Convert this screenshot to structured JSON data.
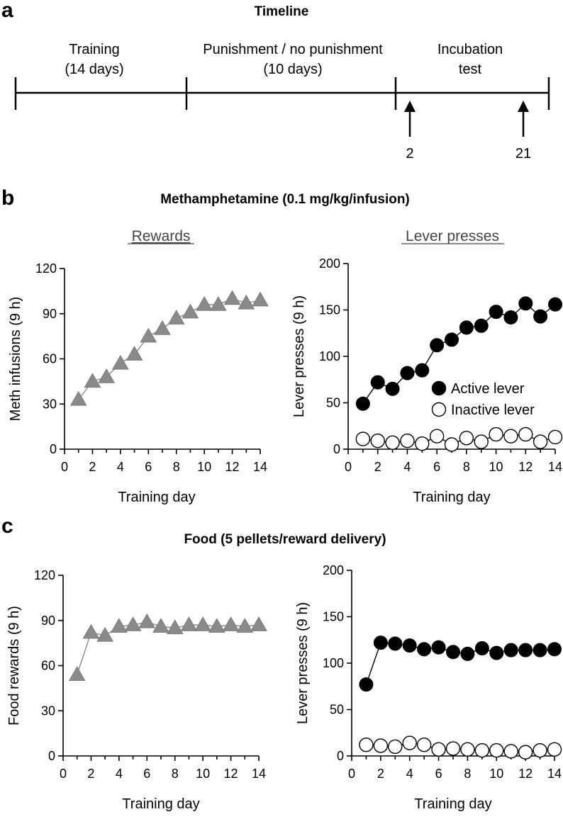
{
  "panels": {
    "a": "a",
    "b": "b",
    "c": "c"
  },
  "timeline": {
    "title": "Timeline",
    "phases": [
      {
        "line1": "Training",
        "line2": "(14 days)"
      },
      {
        "line1": "Punishment / no punishment",
        "line2": "(10 days)"
      },
      {
        "line1": "Incubation",
        "line2": "test"
      }
    ],
    "markers": [
      "2",
      "21"
    ]
  },
  "section_titles": {
    "meth": "Methamphetamine (0.1 mg/kg/infusion)",
    "food": "Food (5 pellets/reward delivery)"
  },
  "subtitles": {
    "rewards": "Rewards",
    "presses": "Lever presses"
  },
  "colors": {
    "triangle": "#8a8a8a",
    "active": "#000000",
    "inactive": "#ffffff"
  },
  "chart_data": [
    {
      "type": "line",
      "id": "meth_rewards",
      "xlabel": "Training day",
      "ylabel": "Meth infusions (9 h)",
      "xlim": [
        0,
        14
      ],
      "ylim": [
        0,
        120
      ],
      "xticks": [
        0,
        2,
        4,
        6,
        8,
        10,
        12,
        14
      ],
      "yticks": [
        0,
        30,
        60,
        90,
        120
      ],
      "series": [
        {
          "marker": "triangle",
          "x": [
            1,
            2,
            3,
            4,
            5,
            6,
            7,
            8,
            9,
            10,
            11,
            12,
            13,
            14
          ],
          "values": [
            33,
            45,
            48,
            57,
            63,
            75,
            80,
            87,
            91,
            96,
            96,
            100,
            97,
            99
          ]
        }
      ]
    },
    {
      "type": "line",
      "id": "meth_presses",
      "xlabel": "Training day",
      "ylabel": "Lever presses (9 h)",
      "xlim": [
        0,
        14
      ],
      "ylim": [
        0,
        200
      ],
      "xticks": [
        0,
        2,
        4,
        6,
        8,
        10,
        12,
        14
      ],
      "yticks": [
        0,
        50,
        100,
        150,
        200
      ],
      "legend": [
        "Active lever",
        "Inactive lever"
      ],
      "series": [
        {
          "name": "Active lever",
          "marker": "filled-circle",
          "x": [
            1,
            2,
            3,
            4,
            5,
            6,
            7,
            8,
            9,
            10,
            11,
            12,
            13,
            14
          ],
          "values": [
            49,
            72,
            65,
            82,
            85,
            112,
            118,
            131,
            133,
            148,
            142,
            157,
            143,
            156
          ]
        },
        {
          "name": "Inactive lever",
          "marker": "open-circle",
          "x": [
            1,
            2,
            3,
            4,
            5,
            6,
            7,
            8,
            9,
            10,
            11,
            12,
            13,
            14
          ],
          "values": [
            11,
            9,
            7,
            9,
            6,
            14,
            5,
            12,
            8,
            16,
            14,
            16,
            8,
            13
          ]
        }
      ]
    },
    {
      "type": "line",
      "id": "food_rewards",
      "xlabel": "Training day",
      "ylabel": "Food rewards (9 h)",
      "xlim": [
        0,
        14
      ],
      "ylim": [
        0,
        120
      ],
      "xticks": [
        0,
        2,
        4,
        6,
        8,
        10,
        12,
        14
      ],
      "yticks": [
        0,
        30,
        60,
        90,
        120
      ],
      "series": [
        {
          "marker": "triangle",
          "x": [
            1,
            2,
            3,
            4,
            5,
            6,
            7,
            8,
            9,
            10,
            11,
            12,
            13,
            14
          ],
          "values": [
            54,
            82,
            80,
            86,
            87,
            89,
            86,
            85,
            87,
            87,
            86,
            87,
            86,
            87
          ]
        }
      ]
    },
    {
      "type": "line",
      "id": "food_presses",
      "xlabel": "Training day",
      "ylabel": "Lever presses (9 h)",
      "xlim": [
        0,
        14
      ],
      "ylim": [
        0,
        200
      ],
      "xticks": [
        0,
        2,
        4,
        6,
        8,
        10,
        12,
        14
      ],
      "yticks": [
        0,
        50,
        100,
        150,
        200
      ],
      "series": [
        {
          "marker": "filled-circle",
          "x": [
            1,
            2,
            3,
            4,
            5,
            6,
            7,
            8,
            9,
            10,
            11,
            12,
            13,
            14
          ],
          "values": [
            77,
            122,
            121,
            119,
            115,
            117,
            112,
            110,
            116,
            111,
            114,
            114,
            114,
            115
          ]
        },
        {
          "marker": "open-circle",
          "x": [
            1,
            2,
            3,
            4,
            5,
            6,
            7,
            8,
            9,
            10,
            11,
            12,
            13,
            14
          ],
          "values": [
            12,
            11,
            10,
            14,
            12,
            7,
            8,
            7,
            6,
            6,
            5,
            4,
            6,
            7
          ]
        }
      ]
    }
  ]
}
